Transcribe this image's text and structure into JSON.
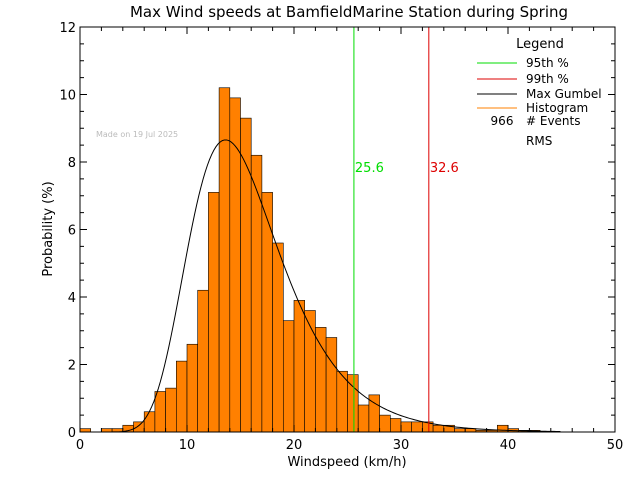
{
  "chart_data": {
    "type": "histogram",
    "title": "Max Wind speeds at BamfieldMarine Station during Spring",
    "xlabel": "Windspeed (km/h)",
    "ylabel": "Probability (%)",
    "xlim": [
      0,
      50
    ],
    "ylim": [
      0,
      12
    ],
    "xticks": [
      "0",
      "10",
      "20",
      "30",
      "40",
      "50"
    ],
    "yticks": [
      "0",
      "2",
      "4",
      "6",
      "8",
      "10",
      "12"
    ],
    "bin_width": 1,
    "bin_start": 0,
    "histogram_values": [
      0.1,
      0,
      0.1,
      0.1,
      0.2,
      0.3,
      0.6,
      1.2,
      1.3,
      2.1,
      2.6,
      4.2,
      7.1,
      10.2,
      9.9,
      9.3,
      8.2,
      7.1,
      5.6,
      3.3,
      3.9,
      3.6,
      3.1,
      2.8,
      1.8,
      1.7,
      0.8,
      1.1,
      0.5,
      0.4,
      0.3,
      0.3,
      0.3,
      0.2,
      0.2,
      0.1,
      0.1,
      0.05,
      0.05,
      0.2,
      0.1,
      0.05,
      0.05
    ],
    "gumbel": {
      "location": 13.6,
      "scale": 4.25,
      "label": "Max Gumbel"
    },
    "percentile_95": {
      "value": 25.6,
      "label": "25.6"
    },
    "percentile_99": {
      "value": 32.6,
      "label": "32.6"
    },
    "legend": {
      "title": "Legend",
      "entries": [
        {
          "name": "95th %",
          "color": "#00dd00"
        },
        {
          "name": "99th %",
          "color": "#dd0000"
        },
        {
          "name": "Max Gumbel",
          "color": "#000000"
        },
        {
          "name": "Histogram",
          "color": "#ff8000"
        }
      ],
      "events_count": "966",
      "events_label": "# Events",
      "rms_label": "RMS"
    },
    "made_on": "Made on 19 Jul 2025",
    "colors": {
      "histogram": "#ff8000",
      "p95": "#00dd00",
      "p99": "#dd0000",
      "gumbel": "#000000"
    }
  }
}
